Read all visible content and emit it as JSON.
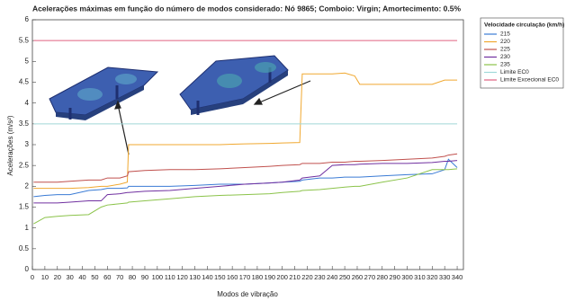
{
  "chart_data": {
    "type": "line",
    "title": "Acelerações máximas em função do número de modos considerado: Nó 9865; Comboio: Virgin; Amortecimento: 0.5%",
    "x_label": "Modos de vibração",
    "y_label": "Acelerações (m/s²)",
    "legend_title": "Velocidade circulação (km/h)",
    "legend_position": "right",
    "x": [
      1,
      10,
      20,
      30,
      45,
      55,
      60,
      70,
      76,
      77,
      90,
      110,
      130,
      150,
      170,
      190,
      200,
      214,
      216,
      230,
      240,
      250,
      258,
      262,
      280,
      300,
      320,
      330,
      333,
      340
    ],
    "series": [
      {
        "name": "215",
        "color": "#3a7bd5",
        "values": [
          1.75,
          1.78,
          1.8,
          1.8,
          1.9,
          1.92,
          1.95,
          1.95,
          1.96,
          2.0,
          2.0,
          2.0,
          2.02,
          2.05,
          2.05,
          2.08,
          2.1,
          2.12,
          2.15,
          2.2,
          2.2,
          2.22,
          2.22,
          2.22,
          2.25,
          2.28,
          2.3,
          2.4,
          2.65,
          2.45
        ]
      },
      {
        "name": "220",
        "color": "#f0a830",
        "values": [
          1.95,
          1.95,
          1.95,
          1.95,
          1.97,
          2.0,
          2.0,
          2.05,
          2.1,
          3.0,
          3.0,
          3.0,
          3.0,
          3.0,
          3.02,
          3.03,
          3.04,
          3.05,
          4.7,
          4.7,
          4.7,
          4.72,
          4.65,
          4.45,
          4.45,
          4.45,
          4.45,
          4.55,
          4.55,
          4.55
        ]
      },
      {
        "name": "225",
        "color": "#c0504d",
        "values": [
          2.1,
          2.1,
          2.1,
          2.12,
          2.15,
          2.15,
          2.2,
          2.2,
          2.25,
          2.35,
          2.38,
          2.4,
          2.4,
          2.42,
          2.45,
          2.48,
          2.5,
          2.52,
          2.55,
          2.55,
          2.58,
          2.58,
          2.6,
          2.6,
          2.62,
          2.65,
          2.68,
          2.72,
          2.75,
          2.78
        ]
      },
      {
        "name": "230",
        "color": "#7030a0",
        "values": [
          1.6,
          1.6,
          1.6,
          1.62,
          1.65,
          1.65,
          1.8,
          1.82,
          1.85,
          1.85,
          1.88,
          1.9,
          1.95,
          2.0,
          2.05,
          2.08,
          2.1,
          2.15,
          2.2,
          2.25,
          2.5,
          2.52,
          2.52,
          2.53,
          2.55,
          2.55,
          2.57,
          2.6,
          2.6,
          2.62
        ]
      },
      {
        "name": "235",
        "color": "#8bc34a",
        "values": [
          1.1,
          1.25,
          1.28,
          1.3,
          1.32,
          1.5,
          1.55,
          1.58,
          1.6,
          1.62,
          1.65,
          1.7,
          1.75,
          1.78,
          1.8,
          1.82,
          1.85,
          1.88,
          1.9,
          1.92,
          1.95,
          1.98,
          2.0,
          2.0,
          2.1,
          2.2,
          2.4,
          2.4,
          2.4,
          2.42
        ]
      },
      {
        "name": "Limite EC0",
        "color": "#a0d8d8",
        "values": [
          3.5,
          3.5,
          3.5,
          3.5,
          3.5,
          3.5,
          3.5,
          3.5,
          3.5,
          3.5,
          3.5,
          3.5,
          3.5,
          3.5,
          3.5,
          3.5,
          3.5,
          3.5,
          3.5,
          3.5,
          3.5,
          3.5,
          3.5,
          3.5,
          3.5,
          3.5,
          3.5,
          3.5,
          3.5,
          3.5
        ]
      },
      {
        "name": "Limite Excecional EC0",
        "color": "#e06080",
        "values": [
          5.5,
          5.5,
          5.5,
          5.5,
          5.5,
          5.5,
          5.5,
          5.5,
          5.5,
          5.5,
          5.5,
          5.5,
          5.5,
          5.5,
          5.5,
          5.5,
          5.5,
          5.5,
          5.5,
          5.5,
          5.5,
          5.5,
          5.5,
          5.5,
          5.5,
          5.5,
          5.5,
          5.5,
          5.5,
          5.5
        ]
      }
    ],
    "xlim": [
      0,
      345
    ],
    "xticks": [
      0,
      10,
      20,
      30,
      40,
      50,
      60,
      70,
      80,
      90,
      100,
      110,
      120,
      130,
      140,
      150,
      160,
      170,
      180,
      190,
      200,
      210,
      220,
      230,
      240,
      250,
      260,
      270,
      280,
      290,
      300,
      310,
      320,
      330,
      340
    ],
    "ylim": [
      0,
      6
    ],
    "yticks": [
      0,
      0.5,
      1,
      1.5,
      2,
      2.5,
      3,
      3.5,
      4,
      4.5,
      5,
      5.5,
      6
    ],
    "grid": false
  }
}
